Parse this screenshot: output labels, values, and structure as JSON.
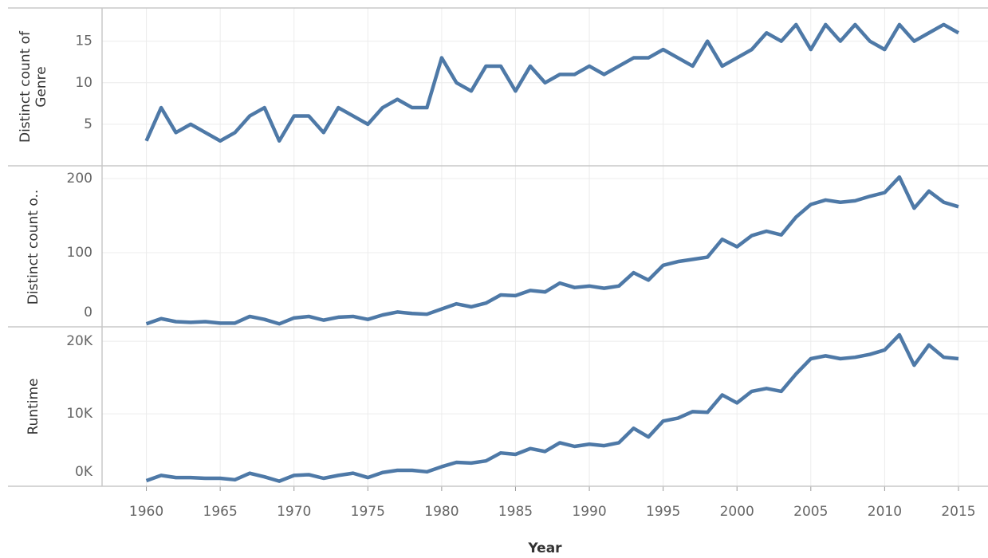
{
  "chart_data": [
    {
      "type": "line",
      "y_label": "Distinct count of Genre",
      "color": "#4e79a7",
      "x": [
        1960,
        1961,
        1962,
        1963,
        1964,
        1965,
        1966,
        1967,
        1968,
        1969,
        1970,
        1971,
        1972,
        1973,
        1974,
        1975,
        1976,
        1977,
        1978,
        1979,
        1980,
        1981,
        1982,
        1983,
        1984,
        1985,
        1986,
        1987,
        1988,
        1989,
        1990,
        1991,
        1992,
        1993,
        1994,
        1995,
        1996,
        1997,
        1998,
        1999,
        2000,
        2001,
        2002,
        2003,
        2004,
        2005,
        2006,
        2007,
        2008,
        2009,
        2010,
        2011,
        2012,
        2013,
        2014,
        2015
      ],
      "values": [
        3,
        7,
        4,
        5,
        4,
        3,
        4,
        6,
        7,
        3,
        6,
        6,
        4,
        7,
        6,
        5,
        7,
        8,
        7,
        7,
        13,
        10,
        9,
        12,
        12,
        9,
        12,
        10,
        11,
        11,
        12,
        11,
        12,
        13,
        13,
        14,
        13,
        12,
        15,
        12,
        13,
        14,
        16,
        15,
        17,
        14,
        17,
        15,
        17,
        15,
        14,
        17,
        15,
        16,
        17,
        16
      ],
      "ylim": [
        0,
        19
      ],
      "yticks": [
        5,
        10,
        15
      ]
    },
    {
      "type": "line",
      "y_label": "Distinct count o..",
      "color": "#4e79a7",
      "x": [
        1960,
        1961,
        1962,
        1963,
        1964,
        1965,
        1966,
        1967,
        1968,
        1969,
        1970,
        1971,
        1972,
        1973,
        1974,
        1975,
        1976,
        1977,
        1978,
        1979,
        1980,
        1981,
        1982,
        1983,
        1984,
        1985,
        1986,
        1987,
        1988,
        1989,
        1990,
        1991,
        1992,
        1993,
        1994,
        1995,
        1996,
        1997,
        1998,
        1999,
        2000,
        2001,
        2002,
        2003,
        2004,
        2005,
        2006,
        2007,
        2008,
        2009,
        2010,
        2011,
        2012,
        2013,
        2014,
        2015
      ],
      "values": [
        4,
        11,
        7,
        6,
        7,
        5,
        5,
        14,
        10,
        4,
        12,
        14,
        9,
        13,
        14,
        10,
        16,
        20,
        18,
        17,
        24,
        31,
        27,
        32,
        43,
        42,
        49,
        47,
        59,
        53,
        55,
        52,
        55,
        73,
        63,
        83,
        88,
        91,
        94,
        118,
        108,
        123,
        129,
        124,
        148,
        165,
        171,
        168,
        170,
        176,
        181,
        202,
        160,
        183,
        168,
        162
      ],
      "ylim": [
        0,
        215
      ],
      "yticks": [
        0,
        100,
        200
      ]
    },
    {
      "type": "line",
      "y_label": "Runtime",
      "color": "#4e79a7",
      "x_label": "Year",
      "x": [
        1960,
        1961,
        1962,
        1963,
        1964,
        1965,
        1966,
        1967,
        1968,
        1969,
        1970,
        1971,
        1972,
        1973,
        1974,
        1975,
        1976,
        1977,
        1978,
        1979,
        1980,
        1981,
        1982,
        1983,
        1984,
        1985,
        1986,
        1987,
        1988,
        1989,
        1990,
        1991,
        1992,
        1993,
        1994,
        1995,
        1996,
        1997,
        1998,
        1999,
        2000,
        2001,
        2002,
        2003,
        2004,
        2005,
        2006,
        2007,
        2008,
        2009,
        2010,
        2011,
        2012,
        2013,
        2014,
        2015
      ],
      "values": [
        770,
        1500,
        1200,
        1200,
        1100,
        1100,
        900,
        1800,
        1300,
        700,
        1500,
        1600,
        1100,
        1500,
        1800,
        1200,
        1900,
        2200,
        2200,
        2000,
        2700,
        3300,
        3200,
        3500,
        4600,
        4400,
        5200,
        4800,
        6000,
        5500,
        5800,
        5600,
        6000,
        8000,
        6800,
        9000,
        9400,
        10300,
        10200,
        12600,
        11500,
        13100,
        13500,
        13100,
        15500,
        17600,
        18000,
        17600,
        17800,
        18200,
        18800,
        20900,
        16700,
        19500,
        17800,
        17600
      ],
      "ylim": [
        0,
        22000
      ],
      "yticks": [
        {
          "value": 0,
          "label": "0K"
        },
        {
          "value": 10000,
          "label": "10K"
        },
        {
          "value": 20000,
          "label": "20K"
        }
      ],
      "xlim": [
        1957,
        2017
      ],
      "xticks": [
        1960,
        1965,
        1970,
        1975,
        1980,
        1985,
        1990,
        1995,
        2000,
        2005,
        2010,
        2015
      ]
    }
  ]
}
